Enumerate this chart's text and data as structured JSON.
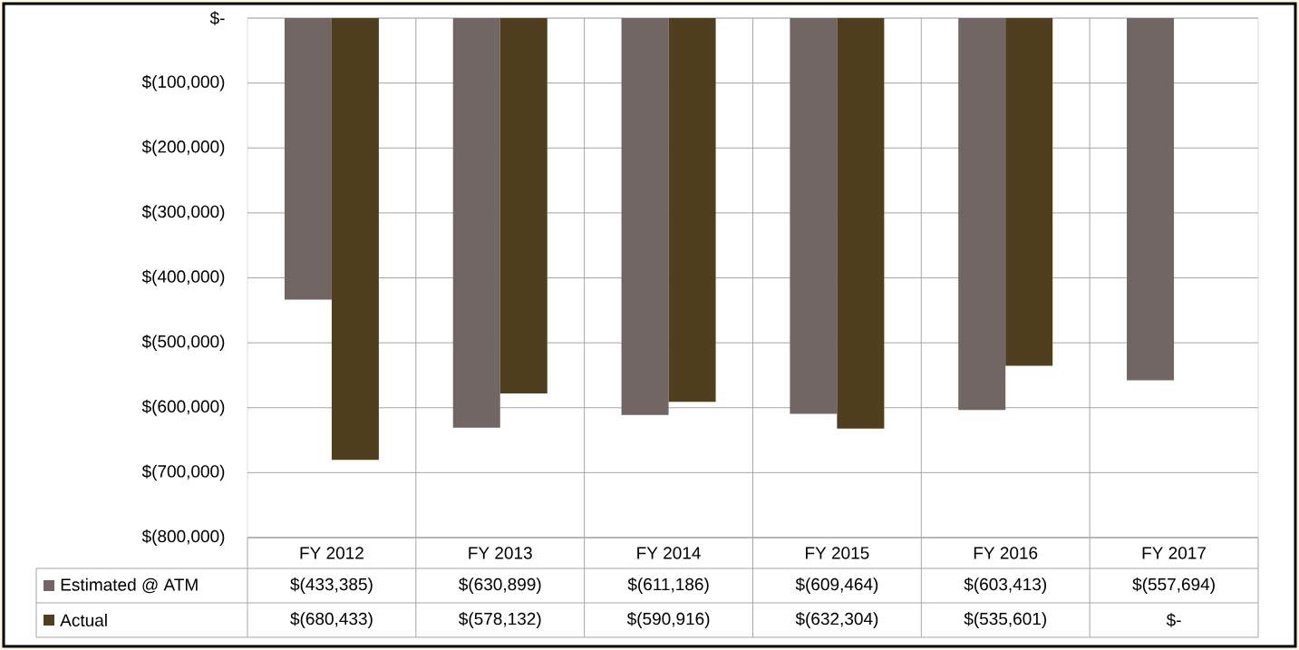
{
  "chart_data": {
    "type": "bar",
    "categories": [
      "FY 2012",
      "FY 2013",
      "FY 2014",
      "FY 2015",
      "FY 2016",
      "FY 2017"
    ],
    "series": [
      {
        "name": "Estimated @ ATM",
        "color": "#716664",
        "values": [
          -433385,
          -630899,
          -611186,
          -609464,
          -603413,
          -557694
        ],
        "value_labels": [
          "$(433,385)",
          "$(630,899)",
          "$(611,186)",
          "$(609,464)",
          "$(603,413)",
          "$(557,694)"
        ]
      },
      {
        "name": "Actual",
        "color": "#4f3f1f",
        "values": [
          -680433,
          -578132,
          -590916,
          -632304,
          -535601,
          0
        ],
        "value_labels": [
          "$(680,433)",
          "$(578,132)",
          "$(590,916)",
          "$(632,304)",
          "$(535,601)",
          "$-"
        ]
      }
    ],
    "ylim": [
      -800000,
      0
    ],
    "yticks": [
      {
        "value": -800000,
        "label": "$(800,000)"
      },
      {
        "value": -700000,
        "label": "$(700,000)"
      },
      {
        "value": -600000,
        "label": "$(600,000)"
      },
      {
        "value": -500000,
        "label": "$(500,000)"
      },
      {
        "value": -400000,
        "label": "$(400,000)"
      },
      {
        "value": -300000,
        "label": "$(300,000)"
      },
      {
        "value": -200000,
        "label": "$(200,000)"
      },
      {
        "value": -100000,
        "label": "$(100,000)"
      },
      {
        "value": 0,
        "label": "$-"
      }
    ],
    "grid": true,
    "legend": "bottom"
  }
}
